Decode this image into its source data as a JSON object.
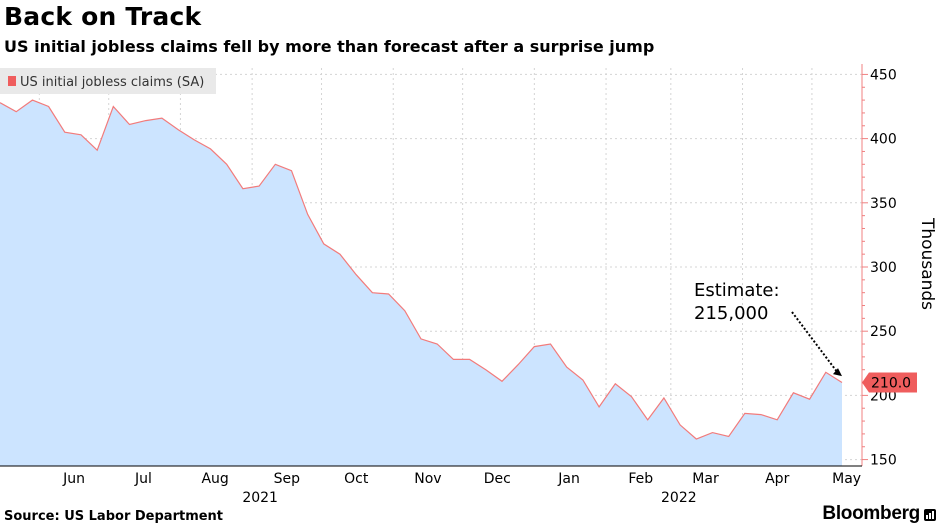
{
  "header": {
    "title": "Back on Track",
    "subtitle": "US initial jobless claims fell by more than forecast after a surprise jump"
  },
  "footer": {
    "source": "Source: US Labor Department",
    "brand": "Bloomberg"
  },
  "colors": {
    "area_fill": "#cce4ff",
    "line": "#f27b7b",
    "axis": "#f08080",
    "grid": "#d4d4d4",
    "callout_bg": "#ef5d5d"
  },
  "chart_data": {
    "type": "area",
    "legend": {
      "label": "US initial jobless claims (SA)",
      "position": "top-left"
    },
    "ylabel": "Thousands",
    "y_axis_side": "right",
    "ylim": [
      145,
      455
    ],
    "y_ticks": [
      150,
      200,
      250,
      300,
      350,
      400,
      450
    ],
    "x_start": "2021-05-15",
    "x_end": "2022-05-14",
    "month_labels": [
      {
        "date": "2021-06-01",
        "label": "Jun"
      },
      {
        "date": "2021-07-01",
        "label": "Jul"
      },
      {
        "date": "2021-08-01",
        "label": "Aug"
      },
      {
        "date": "2021-09-01",
        "label": "Sep"
      },
      {
        "date": "2021-10-01",
        "label": "Oct"
      },
      {
        "date": "2021-11-01",
        "label": "Nov"
      },
      {
        "date": "2021-12-01",
        "label": "Dec"
      },
      {
        "date": "2022-01-01",
        "label": "Jan"
      },
      {
        "date": "2022-02-01",
        "label": "Feb"
      },
      {
        "date": "2022-03-01",
        "label": "Mar"
      },
      {
        "date": "2022-04-01",
        "label": "Apr"
      },
      {
        "date": "2022-05-01",
        "label": "May"
      }
    ],
    "year_labels": [
      {
        "date": "2021-09-01",
        "label": "2021"
      },
      {
        "date": "2022-03-01",
        "label": "2022"
      }
    ],
    "gridlines_x": [
      "2021-06-01",
      "2021-07-01",
      "2021-08-01",
      "2021-09-01",
      "2021-10-01",
      "2021-11-01",
      "2021-12-01",
      "2022-01-01",
      "2022-02-01",
      "2022-03-01",
      "2022-04-01",
      "2022-05-01"
    ],
    "series": [
      {
        "name": "US initial jobless claims (SA)",
        "points": [
          [
            "2021-05-15",
            428
          ],
          [
            "2021-05-22",
            421
          ],
          [
            "2021-05-29",
            430
          ],
          [
            "2021-06-05",
            425
          ],
          [
            "2021-06-12",
            405
          ],
          [
            "2021-06-19",
            403
          ],
          [
            "2021-06-26",
            391
          ],
          [
            "2021-07-03",
            425
          ],
          [
            "2021-07-10",
            411
          ],
          [
            "2021-07-17",
            414
          ],
          [
            "2021-07-24",
            416
          ],
          [
            "2021-07-31",
            407
          ],
          [
            "2021-08-07",
            399
          ],
          [
            "2021-08-14",
            392
          ],
          [
            "2021-08-21",
            380
          ],
          [
            "2021-08-28",
            361
          ],
          [
            "2021-09-04",
            363
          ],
          [
            "2021-09-11",
            380
          ],
          [
            "2021-09-18",
            375
          ],
          [
            "2021-09-25",
            341
          ],
          [
            "2021-10-02",
            318
          ],
          [
            "2021-10-09",
            310
          ],
          [
            "2021-10-16",
            294
          ],
          [
            "2021-10-23",
            280
          ],
          [
            "2021-10-30",
            279
          ],
          [
            "2021-11-06",
            266
          ],
          [
            "2021-11-13",
            244
          ],
          [
            "2021-11-20",
            240
          ],
          [
            "2021-11-27",
            228
          ],
          [
            "2021-12-04",
            228
          ],
          [
            "2021-12-11",
            220
          ],
          [
            "2021-12-18",
            211
          ],
          [
            "2021-12-25",
            224
          ],
          [
            "2022-01-01",
            238
          ],
          [
            "2022-01-08",
            240
          ],
          [
            "2022-01-15",
            222
          ],
          [
            "2022-01-22",
            212
          ],
          [
            "2022-01-29",
            191
          ],
          [
            "2022-02-05",
            209
          ],
          [
            "2022-02-12",
            199
          ],
          [
            "2022-02-19",
            181
          ],
          [
            "2022-02-26",
            198
          ],
          [
            "2022-03-05",
            177
          ],
          [
            "2022-03-12",
            166
          ],
          [
            "2022-03-19",
            171
          ],
          [
            "2022-03-26",
            168
          ],
          [
            "2022-04-02",
            186
          ],
          [
            "2022-04-09",
            185
          ],
          [
            "2022-04-16",
            181
          ],
          [
            "2022-04-23",
            202
          ],
          [
            "2022-04-30",
            197
          ],
          [
            "2022-05-07",
            218
          ],
          [
            "2022-05-14",
            210
          ]
        ]
      }
    ],
    "last_value": {
      "label": "210.0",
      "value": 210
    },
    "annotation": {
      "line1": "Estimate:",
      "line2": "215,000",
      "target_value": 215,
      "target_date": "2022-05-14"
    }
  }
}
